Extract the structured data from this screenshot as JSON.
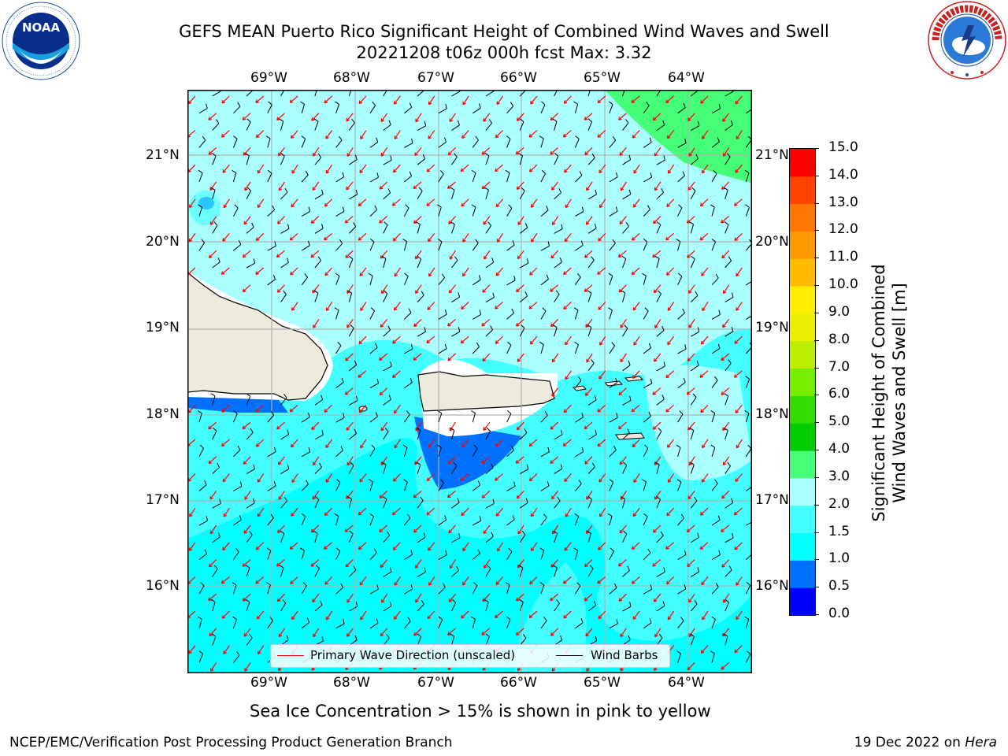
{
  "title": {
    "line1": "GEFS MEAN Puerto Rico Significant Height of Combined Wind Waves and Swell",
    "line2": "20221208 t06z 000h fcst   Max: 3.32"
  },
  "logos": {
    "left": {
      "name": "noaa-logo",
      "text": "NOAA",
      "ring_text": "NATIONAL OCEANIC AND ATMOSPHERIC ADMINISTRATION · U.S. DEPARTMENT OF COMMERCE"
    },
    "right": {
      "name": "nws-logo",
      "ring_text": "NATIONAL WEATHER SERVICE"
    }
  },
  "map": {
    "lon_labels": [
      "69°W",
      "68°W",
      "67°W",
      "66°W",
      "65°W",
      "64°W"
    ],
    "lat_labels": [
      "21°N",
      "20°N",
      "19°N",
      "18°N",
      "17°N",
      "16°N"
    ],
    "legend": {
      "wave": "Primary Wave Direction (unscaled)",
      "barb": "Wind Barbs",
      "wave_color": "#ff0000",
      "barb_color": "#000000"
    }
  },
  "colorbar": {
    "label": "Significant Height of Combined\nWind Waves and Swell [m]",
    "ticks": [
      "15.0",
      "14.0",
      "13.0",
      "12.0",
      "11.0",
      "10.0",
      "9.0",
      "8.0",
      "7.0",
      "6.0",
      "5.0",
      "4.0",
      "3.0",
      "2.0",
      "1.5",
      "1.0",
      "0.5",
      "0.0"
    ],
    "colors_bottom_to_top": [
      "#0000ff",
      "#0070ff",
      "#00ffff",
      "#44ffff",
      "#aaffff",
      "#44ff77",
      "#00cc00",
      "#33dd00",
      "#77ee00",
      "#bbee00",
      "#eeee00",
      "#ffee00",
      "#ffbb00",
      "#ff9900",
      "#ff7700",
      "#ff4400",
      "#ff0000"
    ]
  },
  "sea_ice_note": "Sea Ice Concentration > 15% is shown in pink to yellow",
  "footer": {
    "left": "NCEP/EMC/Verification Post Processing Product Generation Branch",
    "right_prefix": "19 Dec 2022 on ",
    "right_host": "Hera"
  }
}
